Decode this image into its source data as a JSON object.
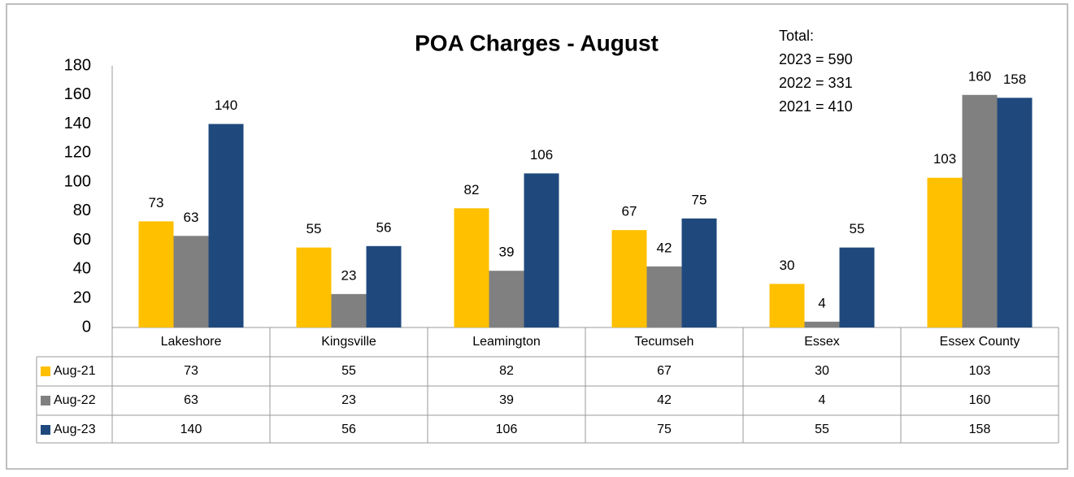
{
  "chart_data": {
    "type": "bar",
    "title": "POA Charges - August",
    "annotation": [
      "Total:",
      "2023 = 590",
      "2022 = 331",
      "2021 = 410"
    ],
    "categories": [
      "Lakeshore",
      "Kingsville",
      "Leamington",
      "Tecumseh",
      "Essex",
      "Essex County"
    ],
    "series": [
      {
        "name": "Aug-21",
        "color": "#ffc000",
        "values": [
          73,
          55,
          82,
          67,
          30,
          103
        ]
      },
      {
        "name": "Aug-22",
        "color": "#808080",
        "values": [
          63,
          23,
          39,
          42,
          4,
          160
        ]
      },
      {
        "name": "Aug-23",
        "color": "#1f497d",
        "values": [
          140,
          56,
          106,
          75,
          55,
          158
        ]
      }
    ],
    "ylim": [
      0,
      180
    ],
    "yticks": [
      0,
      20,
      40,
      60,
      80,
      100,
      120,
      140,
      160,
      180
    ],
    "grid": false
  }
}
